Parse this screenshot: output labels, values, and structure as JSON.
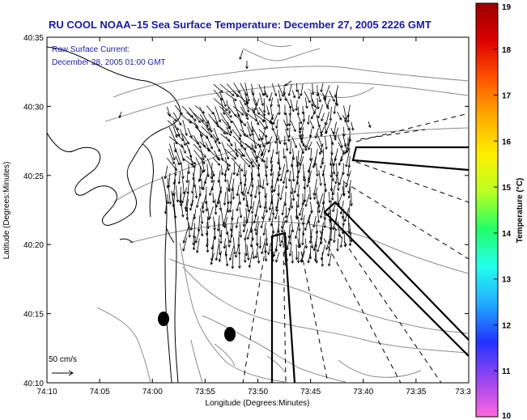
{
  "title": "RU COOL  NOAA–15  Sea Surface Temperature:  December 27, 2005 2226 GMT",
  "annotation": {
    "line1": "Raw Surface Current:",
    "line2": "December 28, 2005 01:00 GMT"
  },
  "scale_label": "50 cm/s",
  "axes": {
    "xlabel": "Longitude (Degrees:Minutes)",
    "ylabel": "Latitude (Degrees:Minutes)",
    "x_ticks": [
      "74:10",
      "74:05",
      "74:00",
      "73:55",
      "73:50",
      "73:45",
      "73:40",
      "73:35",
      "73:3"
    ],
    "y_ticks": [
      "40:35",
      "40:30",
      "40:25",
      "40:20",
      "40:15",
      "40:10"
    ]
  },
  "colorbar": {
    "label": "Temperature (°C)",
    "ticks": [
      "19",
      "18",
      "17",
      "16",
      "15",
      "14",
      "13",
      "12",
      "11",
      "10"
    ],
    "min": 10,
    "max": 19,
    "colors": [
      "#ff66dd",
      "#9944ee",
      "#2233ff",
      "#22aaff",
      "#22ffee",
      "#22ff66",
      "#bbff22",
      "#ffee00",
      "#ffaa00",
      "#ff5500",
      "#dd0000",
      "#990000"
    ]
  },
  "chart_data": {
    "type": "vector-field-map",
    "title": "RU COOL  NOAA–15  Sea Surface Temperature:  December 27, 2005 2226 GMT",
    "xlabel": "Longitude (Degrees:Minutes)",
    "ylabel": "Latitude (Degrees:Minutes)",
    "xlim": [
      "74:10",
      "73:30"
    ],
    "ylim": [
      "40:10",
      "40:35"
    ],
    "vector_reference": "50 cm/s",
    "colorbar_range": [
      10,
      19
    ]
  }
}
